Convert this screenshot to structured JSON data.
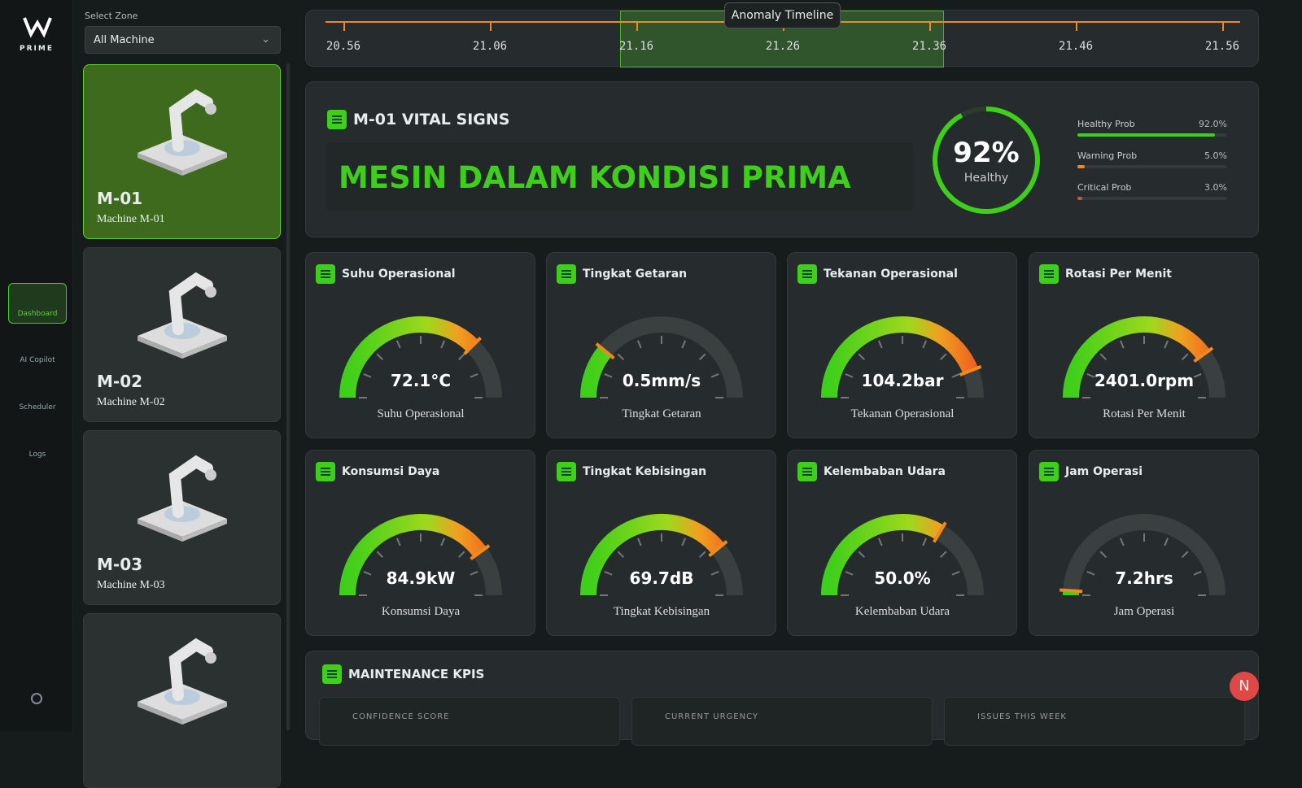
{
  "brand": "PRIME",
  "nav": [
    "Dashboard",
    "AI Copilot",
    "Scheduler",
    "Logs"
  ],
  "zone": {
    "label": "Select Zone",
    "value": "All Machine"
  },
  "machines": [
    {
      "id": "M-01",
      "name": "Machine M-01"
    },
    {
      "id": "M-02",
      "name": "Machine M-02"
    },
    {
      "id": "M-03",
      "name": "Machine M-03"
    }
  ],
  "timeline": {
    "title": "Anomaly Timeline",
    "ticks": [
      "20.56",
      "21.06",
      "21.16",
      "21.26",
      "21.36",
      "21.46",
      "21.56"
    ]
  },
  "vital": {
    "title": "M-01 VITAL SIGNS",
    "status": "MESIN DALAM KONDISI PRIMA",
    "health": {
      "value": 92,
      "label": "92%",
      "caption": "Healthy"
    },
    "probs": [
      {
        "name": "Healthy Prob",
        "value": 92.0,
        "label": "92.0%",
        "color": "#3ecf1a"
      },
      {
        "name": "Warning Prob",
        "value": 5.0,
        "label": "5.0%",
        "color": "#f08a1c"
      },
      {
        "name": "Critical Prob",
        "value": 3.0,
        "label": "3.0%",
        "color": "#e04848"
      }
    ]
  },
  "gauges": [
    {
      "title": "Suhu Operasional",
      "value": "72.1°C",
      "caption": "Suhu Operasional",
      "level": 75
    },
    {
      "title": "Tingkat Getaran",
      "value": "0.5mm/s",
      "caption": "Tingkat Getaran",
      "level": 22
    },
    {
      "title": "Tekanan Operasional",
      "value": "104.2bar",
      "caption": "Tekanan Operasional",
      "level": 88
    },
    {
      "title": "Rotasi Per Menit",
      "value": "2401.0rpm",
      "caption": "Rotasi Per Menit",
      "level": 80
    },
    {
      "title": "Konsumsi Daya",
      "value": "84.9kW",
      "caption": "Konsumsi Daya",
      "level": 80
    },
    {
      "title": "Tingkat Kebisingan",
      "value": "69.7dB",
      "caption": "Tingkat Kebisingan",
      "level": 78
    },
    {
      "title": "Kelembaban Udara",
      "value": "50.0%",
      "caption": "Kelembaban Udara",
      "level": 67
    },
    {
      "title": "Jam Operasi",
      "value": "7.2hrs",
      "caption": "Jam Operasi",
      "level": 2
    }
  ],
  "maintenance": {
    "title": "MAINTENANCE KPIS",
    "cards": [
      "CONFIDENCE SCORE",
      "CURRENT URGENCY",
      "ISSUES THIS WEEK"
    ]
  },
  "avatar": "N"
}
